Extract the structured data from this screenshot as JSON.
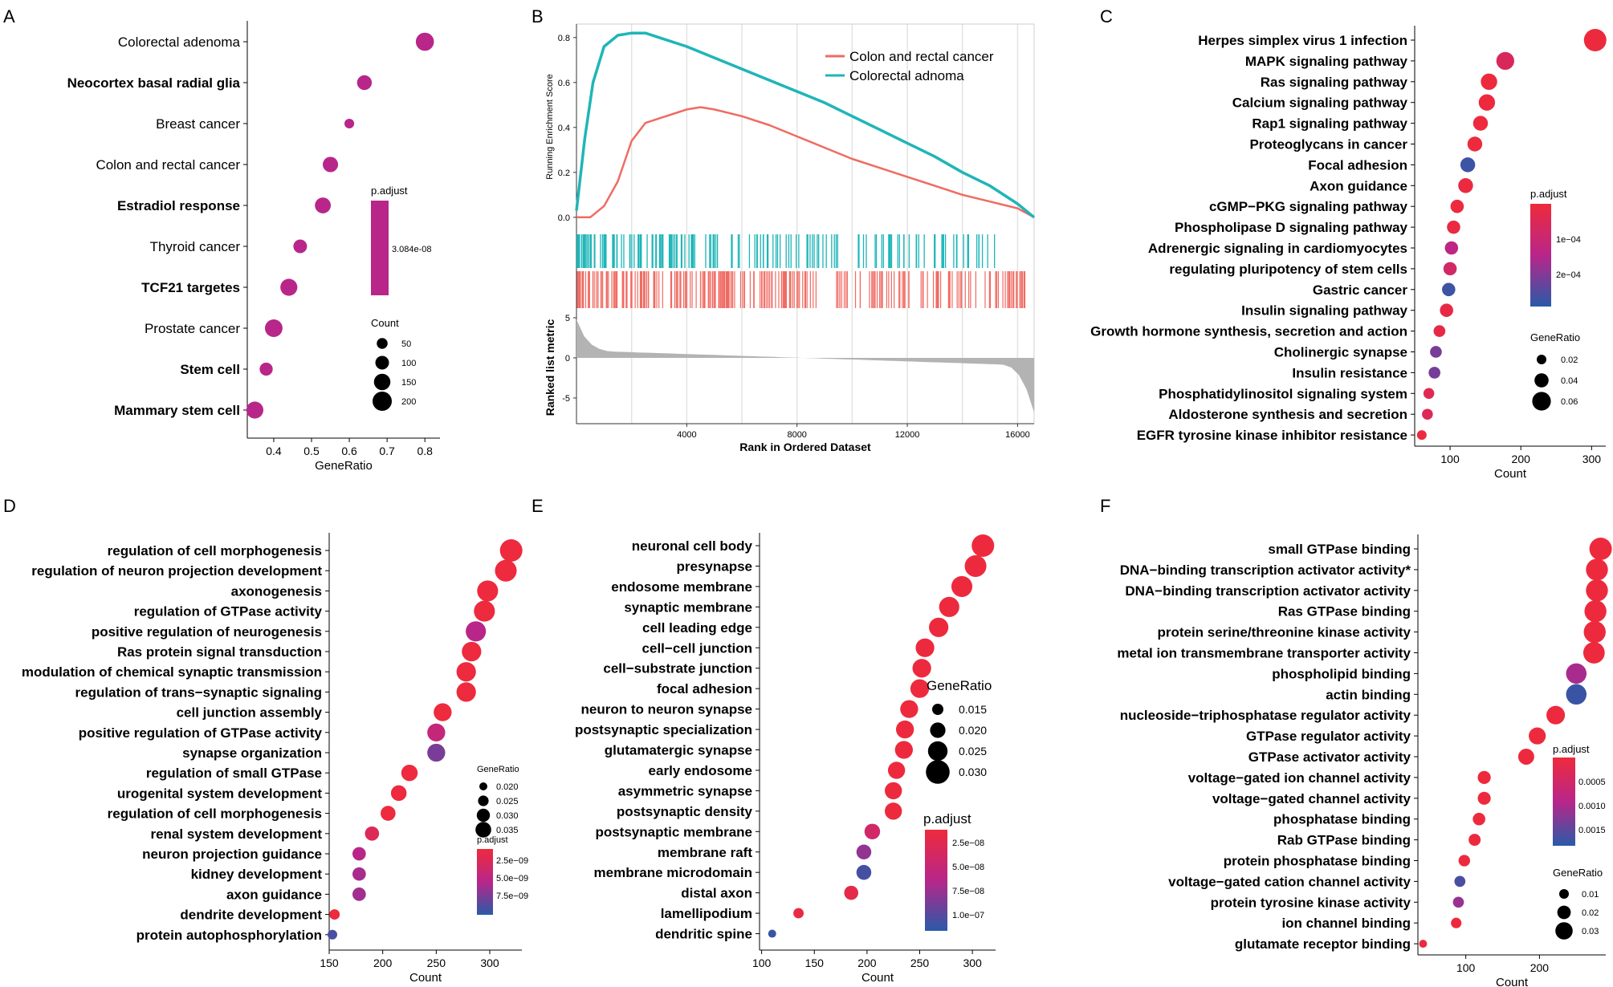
{
  "colors": {
    "low_p": "#ee2a3c",
    "mid_p": "#b8268a",
    "high_p": "#2a5aa8",
    "teal": "#1fb5b8",
    "salmon": "#ef6b63",
    "gray": "#b3b3b3"
  },
  "chart_data": [
    {
      "panel": "A",
      "type": "scatter",
      "xlabel": "GeneRatio",
      "xlim": [
        0.33,
        0.84
      ],
      "xticks": [
        0.4,
        0.5,
        0.6,
        0.7,
        0.8
      ],
      "categories": [
        "Colorectal adenoma",
        "Neocortex basal radial glia",
        "Breast cancer",
        "Colon and rectal cancer",
        "Estradiol response",
        "Thyroid cancer",
        "TCF21 targetes",
        "Prostate cancer",
        "Stem cell",
        "Mammary stem cell"
      ],
      "bold": [
        false,
        true,
        false,
        false,
        true,
        false,
        true,
        false,
        true,
        true
      ],
      "x": [
        0.8,
        0.64,
        0.6,
        0.55,
        0.53,
        0.47,
        0.44,
        0.4,
        0.38,
        0.35
      ],
      "count": [
        180,
        120,
        30,
        130,
        140,
        100,
        160,
        170,
        90,
        160
      ],
      "padj": [
        3.084e-08,
        3.084e-08,
        3.084e-08,
        3.084e-08,
        3.084e-08,
        3.084e-08,
        3.084e-08,
        3.084e-08,
        3.084e-08,
        3.084e-08
      ],
      "legend_color": {
        "title": "p.adjust",
        "label": "3.084e-08"
      },
      "legend_size": {
        "title": "Count",
        "values": [
          50,
          100,
          150,
          200
        ]
      }
    },
    {
      "panel": "B",
      "type": "line",
      "xlabel": "Rank in Ordered Dataset",
      "ylabel_top": "Running Enrichment Score",
      "ylabel_bottom": "Ranked list metric",
      "xlim": [
        0,
        16600
      ],
      "xticks": [
        4000,
        8000,
        12000,
        16000
      ],
      "ylim_es": [
        -0.04,
        0.86
      ],
      "yticks_es": [
        0.0,
        0.2,
        0.4,
        0.6,
        0.8
      ],
      "yticks_metric": [
        5,
        0,
        -5
      ],
      "series": [
        {
          "name": "Colon and rectal cancer",
          "color": "#ef6b63",
          "x": [
            0,
            500,
            1000,
            1500,
            2000,
            2500,
            3000,
            3500,
            4000,
            4500,
            5000,
            6000,
            7000,
            8000,
            9000,
            10000,
            11000,
            12000,
            13000,
            14000,
            15000,
            16000,
            16600
          ],
          "y": [
            0.0,
            0.0,
            0.05,
            0.16,
            0.34,
            0.42,
            0.44,
            0.46,
            0.48,
            0.49,
            0.48,
            0.45,
            0.41,
            0.36,
            0.31,
            0.26,
            0.22,
            0.18,
            0.14,
            0.1,
            0.07,
            0.04,
            0.0
          ]
        },
        {
          "name": "Colorectal adnoma",
          "color": "#1fb5b8",
          "x": [
            0,
            300,
            600,
            1000,
            1500,
            2000,
            2500,
            3000,
            4000,
            5000,
            6000,
            7000,
            8000,
            9000,
            10000,
            11000,
            12000,
            13000,
            14000,
            15000,
            16000,
            16600
          ],
          "y": [
            0.03,
            0.35,
            0.6,
            0.76,
            0.81,
            0.82,
            0.82,
            0.8,
            0.76,
            0.71,
            0.66,
            0.61,
            0.56,
            0.51,
            0.45,
            0.39,
            0.33,
            0.27,
            0.2,
            0.14,
            0.06,
            0.0
          ]
        }
      ]
    },
    {
      "panel": "C",
      "type": "scatter",
      "xlabel": "Count",
      "xlim": [
        50,
        320
      ],
      "xticks": [
        100,
        200,
        300
      ],
      "categories": [
        "Herpes simplex virus 1 infection",
        "MAPK signaling pathway",
        "Ras signaling pathway",
        "Calcium signaling pathway",
        "Rap1 signaling pathway",
        "Proteoglycans in cancer",
        "Focal adhesion",
        "Axon guidance",
        "cGMP−PKG signaling pathway",
        "Phospholipase D signaling pathway",
        "Adrenergic signaling in cardiomyocytes",
        "regulating pluripotency of stem cells",
        "Gastric cancer",
        "Insulin signaling pathway",
        "Growth hormone synthesis, secretion and action",
        "Cholinergic synapse",
        "Insulin resistance",
        "Phosphatidylinositol signaling system",
        "Aldosterone synthesis and secretion",
        "EGFR tyrosine kinase inhibitor resistance"
      ],
      "x": [
        305,
        178,
        155,
        152,
        143,
        135,
        125,
        122,
        110,
        105,
        102,
        100,
        98,
        95,
        85,
        80,
        78,
        70,
        68,
        60
      ],
      "gene_ratio": [
        0.06,
        0.045,
        0.04,
        0.04,
        0.035,
        0.035,
        0.035,
        0.035,
        0.03,
        0.03,
        0.03,
        0.03,
        0.03,
        0.03,
        0.025,
        0.025,
        0.025,
        0.022,
        0.022,
        0.018
      ],
      "padj": [
        2e-06,
        6e-05,
        2e-06,
        2e-06,
        2e-06,
        4e-06,
        0.00028,
        1e-05,
        3e-06,
        1e-05,
        0.00014,
        8e-05,
        0.00028,
        2e-05,
        2e-05,
        0.00022,
        0.00022,
        4e-05,
        5e-05,
        2e-06
      ],
      "legend_color": {
        "title": "p.adjust",
        "labels": [
          "1e−04",
          "2e−04"
        ]
      },
      "legend_size": {
        "title": "GeneRatio",
        "values": [
          "0.02",
          "0.04",
          "0.06"
        ]
      }
    },
    {
      "panel": "D",
      "type": "scatter",
      "xlabel": "Count",
      "xlim": [
        150,
        330
      ],
      "xticks": [
        150,
        200,
        250,
        300
      ],
      "categories": [
        "regulation of cell morphogenesis",
        "regulation of neuron projection development",
        "axonogenesis",
        "regulation of GTPase activity",
        "positive regulation of neurogenesis",
        "Ras protein signal transduction",
        "modulation of chemical synaptic transmission",
        "regulation of trans−synaptic signaling",
        "cell junction assembly",
        "positive regulation of GTPase activity",
        "synapse organization",
        "regulation of small GTPase",
        "urogenital system development",
        "regulation of cell morphogenesis",
        "renal system development",
        "neuron projection guidance",
        "kidney development",
        "axon guidance",
        "dendrite development",
        "protein autophosphorylation"
      ],
      "x": [
        320,
        315,
        298,
        295,
        287,
        283,
        278,
        278,
        256,
        250,
        250,
        225,
        215,
        205,
        190,
        178,
        178,
        178,
        155,
        153
      ],
      "gene_ratio": [
        0.036,
        0.035,
        0.034,
        0.034,
        0.033,
        0.032,
        0.032,
        0.032,
        0.03,
        0.03,
        0.03,
        0.028,
        0.027,
        0.026,
        0.025,
        0.024,
        0.024,
        0.024,
        0.02,
        0.019
      ],
      "padj": [
        1e-10,
        1e-10,
        1e-10,
        1e-10,
        4.5e-09,
        1e-10,
        1e-10,
        1e-10,
        1e-10,
        3.5e-09,
        6.5e-09,
        1e-10,
        1e-10,
        1e-10,
        1.5e-09,
        4.5e-09,
        5e-09,
        5.2e-09,
        1e-10,
        8e-09
      ],
      "legend_color": {
        "title": "p.adjust",
        "labels": [
          "2.5e−09",
          "5.0e−09",
          "7.5e−09"
        ]
      },
      "legend_size": {
        "title": "GeneRatio",
        "values": [
          "0.020",
          "0.025",
          "0.030",
          "0.035"
        ]
      }
    },
    {
      "panel": "E",
      "type": "scatter",
      "xlabel": "Count",
      "xlim": [
        98,
        322
      ],
      "xticks": [
        100,
        150,
        200,
        250,
        300
      ],
      "categories": [
        "neuronal cell body",
        "presynapse",
        "endosome membrane",
        "synaptic membrane",
        "cell leading edge",
        "cell−cell junction",
        "cell−substrate junction",
        "focal adhesion",
        "neuron to neuron synapse",
        "postsynaptic specialization",
        "glutamatergic synapse",
        "early endosome",
        "asymmetric synapse",
        "postsynaptic density",
        "postsynaptic membrane",
        "membrane raft",
        "membrane microdomain",
        "distal axon",
        "lamellipodium",
        "dendritic spine"
      ],
      "x": [
        310,
        303,
        290,
        278,
        268,
        255,
        252,
        250,
        240,
        236,
        235,
        228,
        225,
        225,
        205,
        197,
        197,
        185,
        135,
        110
      ],
      "gene_ratio": [
        0.032,
        0.031,
        0.03,
        0.029,
        0.028,
        0.027,
        0.027,
        0.027,
        0.026,
        0.026,
        0.026,
        0.025,
        0.025,
        0.025,
        0.023,
        0.022,
        0.022,
        0.021,
        0.016,
        0.013
      ],
      "padj": [
        1e-09,
        1e-09,
        1e-09,
        1e-09,
        1e-09,
        1e-09,
        1e-09,
        1e-09,
        1e-09,
        1e-09,
        1e-09,
        1e-09,
        1e-09,
        1e-09,
        3e-08,
        7e-08,
        1e-07,
        1e-08,
        5e-09,
        1.05e-07
      ],
      "legend_color": {
        "title": "p.adjust",
        "labels": [
          "2.5e−08",
          "5.0e−08",
          "7.5e−08",
          "1.0e−07"
        ]
      },
      "legend_size": {
        "title": "GeneRatio",
        "values": [
          "0.015",
          "0.020",
          "0.025",
          "0.030"
        ]
      }
    },
    {
      "panel": "F",
      "type": "scatter",
      "xlabel": "Count",
      "xlim": [
        35,
        290
      ],
      "xticks": [
        100,
        200
      ],
      "categories": [
        "small GTPase binding",
        "DNA−binding transcription activator activity*",
        "DNA−binding transcription activator activity",
        "Ras GTPase binding",
        "protein serine/threonine kinase activity",
        "metal ion transmembrane transporter activity",
        "phospholipid binding",
        "actin binding",
        "nucleoside−triphosphatase regulator activity",
        "GTPase regulator activity",
        "GTPase activator activity",
        "voltage−gated ion channel activity",
        "voltage−gated channel activity",
        "phosphatase binding",
        "Rab GTPase binding",
        "protein phosphatase binding",
        "voltage−gated cation channel activity",
        "protein tyrosine kinase activity",
        "ion channel binding",
        "glutamate receptor binding"
      ],
      "x": [
        283,
        278,
        278,
        276,
        275,
        274,
        250,
        250,
        222,
        197,
        182,
        125,
        125,
        118,
        112,
        98,
        92,
        90,
        87,
        42
      ],
      "gene_ratio": [
        0.036,
        0.035,
        0.035,
        0.035,
        0.035,
        0.034,
        0.032,
        0.032,
        0.028,
        0.025,
        0.023,
        0.017,
        0.017,
        0.016,
        0.015,
        0.014,
        0.013,
        0.013,
        0.012,
        0.007
      ],
      "padj": [
        1e-05,
        1e-05,
        1e-05,
        1e-05,
        1e-05,
        1e-05,
        0.001,
        0.0017,
        1e-05,
        1e-05,
        1e-05,
        1e-05,
        1e-05,
        1e-05,
        1e-05,
        1e-05,
        0.0016,
        0.0011,
        1e-05,
        1e-05
      ],
      "legend_color": {
        "title": "p.adjust",
        "labels": [
          "0.0005",
          "0.0010",
          "0.0015"
        ]
      },
      "legend_size": {
        "title": "GeneRatio",
        "values": [
          "0.01",
          "0.02",
          "0.03"
        ]
      }
    }
  ]
}
